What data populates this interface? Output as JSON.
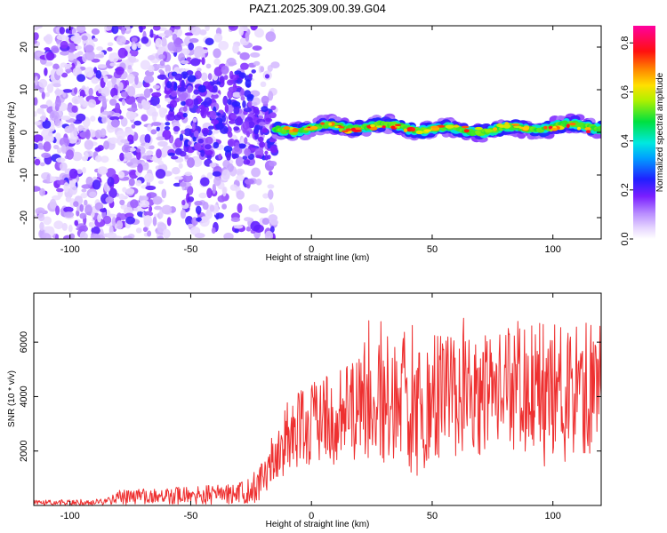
{
  "chart_data": [
    {
      "type": "heatmap",
      "title": "PAZ1.2025.309.00.39.G04",
      "xlabel": "Height of straight line (km)",
      "ylabel": "Frequency (Hz)",
      "xlim": [
        -115,
        120
      ],
      "ylim": [
        -25,
        25
      ],
      "xticks": [
        -100,
        -50,
        0,
        50,
        100
      ],
      "xtick_labels": [
        "-100",
        "-50",
        "0",
        "50",
        "100"
      ],
      "yticks": [
        -20,
        -10,
        0,
        10,
        20
      ],
      "ytick_labels": [
        "-20",
        "-10",
        "0",
        "10",
        "20"
      ],
      "colorbar": {
        "label": "Normalized spectral amplitude",
        "range": [
          0.0,
          0.87
        ],
        "ticks": [
          0.0,
          0.2,
          0.4,
          0.6,
          0.8
        ],
        "tick_labels": [
          "0.0",
          "0.2",
          "0.4",
          "0.6",
          "0.8"
        ]
      },
      "features": {
        "noise_region_km": [
          -115,
          -20
        ],
        "signal_start_km": -15,
        "signal_center_hz": 1,
        "signal_halfwidth_hz": 2.5
      }
    },
    {
      "type": "line",
      "xlabel": "Height of straight line (km)",
      "ylabel": "SNR (10 * v/v)",
      "xlim": [
        -115,
        120
      ],
      "ylim": [
        0,
        7800
      ],
      "xticks": [
        -100,
        -50,
        0,
        50,
        100
      ],
      "xtick_labels": [
        "-100",
        "-50",
        "0",
        "50",
        "100"
      ],
      "yticks": [
        2000,
        4000,
        6000
      ],
      "ytick_labels": [
        "2000",
        "4000",
        "6000"
      ],
      "series": [
        {
          "name": "SNR",
          "color": "#ee3030",
          "envelope_x": [
            -115,
            -85,
            -80,
            -60,
            -40,
            -30,
            -25,
            -20,
            -17,
            -13,
            -10,
            -5,
            0,
            10,
            20,
            30,
            40,
            60,
            80,
            100,
            120
          ],
          "envelope_y": [
            100,
            130,
            300,
            350,
            400,
            450,
            600,
            900,
            1600,
            2200,
            2500,
            2700,
            2900,
            3200,
            3500,
            3800,
            4000,
            4200,
            4300,
            4300,
            4300
          ]
        }
      ]
    }
  ]
}
